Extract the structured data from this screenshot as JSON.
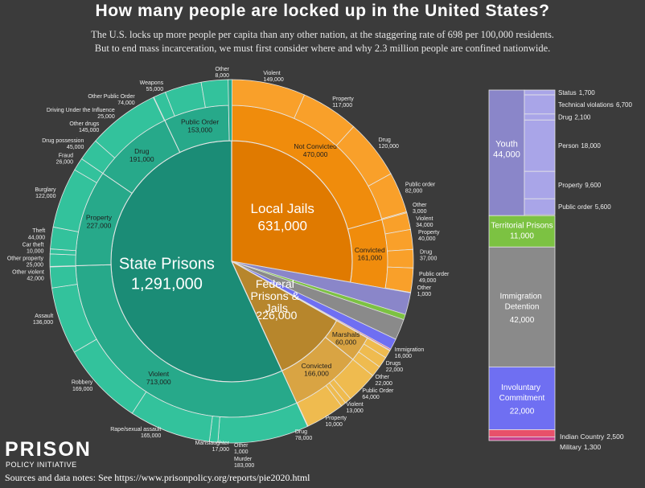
{
  "chart_data": {
    "type": "sunburst",
    "title": "How many people are locked up in the United States?",
    "subtitle": [
      "The U.S. locks up more people per capita than any other nation, at the staggering rate of 698 per 100,000 residents.",
      "But to end mass incarceration, we must first consider where and why 2.3 million people are confined nationwide."
    ],
    "source": "Sources and data notes: See https://www.prisonpolicy.org/reports/pie2020.html",
    "logo": [
      "PRISON",
      "POLICY INITIATIVE"
    ],
    "nodes": [
      {
        "name": "Local Jails",
        "value": 631000,
        "value_label": "631,000",
        "colors": [
          "#e07a00",
          "#f08c0c",
          "#f9a02a"
        ],
        "children": [
          {
            "name": "Not Convicted",
            "value": 470000,
            "value_label": "470,000",
            "children": [
              {
                "name": "Violent",
                "value": 149000,
                "value_label": "149,000"
              },
              {
                "name": "Property",
                "value": 117000,
                "value_label": "117,000"
              },
              {
                "name": "Drug",
                "value": 120000,
                "value_label": "120,000"
              },
              {
                "name": "Public order",
                "value": 82000,
                "value_label": "82,000"
              },
              {
                "name": "Other",
                "value": 3000,
                "value_label": "3,000"
              }
            ]
          },
          {
            "name": "Convicted",
            "value": 161000,
            "value_label": "161,000",
            "children": [
              {
                "name": "Violent",
                "value": 34000,
                "value_label": "34,000"
              },
              {
                "name": "Property",
                "value": 40000,
                "value_label": "40,000"
              },
              {
                "name": "Drug",
                "value": 37000,
                "value_label": "37,000"
              },
              {
                "name": "Public order",
                "value": 49000,
                "value_label": "49,000"
              },
              {
                "name": "Other",
                "value": 1000,
                "value_label": "1,000"
              }
            ]
          }
        ]
      },
      {
        "name": "Youth",
        "value": 44000,
        "value_label": "44,000",
        "colors": [
          "#8a86c9",
          "#a9a5e8"
        ],
        "children": [
          {
            "name": "Status",
            "value": 1700,
            "value_label": "1,700"
          },
          {
            "name": "Technical violations",
            "value": 6700,
            "value_label": "6,700"
          },
          {
            "name": "Drug",
            "value": 2100,
            "value_label": "2,100"
          },
          {
            "name": "Person",
            "value": 18000,
            "value_label": "18,000"
          },
          {
            "name": "Property",
            "value": 9600,
            "value_label": "9,600"
          },
          {
            "name": "Public order",
            "value": 5600,
            "value_label": "5,600"
          }
        ]
      },
      {
        "name": "Territorial Prisons",
        "value": 11000,
        "value_label": "11,000",
        "color": "#7cc242"
      },
      {
        "name": "Immigration Detention",
        "value": 42000,
        "value_label": "42,000",
        "color": "#8a8a8a"
      },
      {
        "name": "Involuntary Commitment",
        "value": 22000,
        "value_label": "22,000",
        "color": "#6f6ff2"
      },
      {
        "name": "Indian Country",
        "value": 2500,
        "value_label": "2,500",
        "color": "#e8506a"
      },
      {
        "name": "Military",
        "value": 1300,
        "value_label": "1,300",
        "color": "#c9408c"
      },
      {
        "name": "Federal Prisons & Jails",
        "value": 226000,
        "value_label": "226,000",
        "colors": [
          "#b7862c",
          "#d9a443",
          "#efbb4f"
        ],
        "children": [
          {
            "name": "Marshals",
            "value": 60000,
            "value_label": "60,000",
            "children": [
              {
                "name": "Immigration",
                "value": 16000,
                "value_label": "16,000"
              },
              {
                "name": "Drugs",
                "value": 22000,
                "value_label": "22,000"
              },
              {
                "name": "Other",
                "value": 22000,
                "value_label": "22,000"
              }
            ]
          },
          {
            "name": "Convicted",
            "value": 166000,
            "value_label": "166,000",
            "children": [
              {
                "name": "Public Order",
                "value": 64000,
                "value_label": "64,000"
              },
              {
                "name": "Violent",
                "value": 13000,
                "value_label": "13,000"
              },
              {
                "name": "Property",
                "value": 10000,
                "value_label": "10,000"
              },
              {
                "name": "Drug",
                "value": 78000,
                "value_label": "78,000"
              },
              {
                "name": "Other",
                "value": 1000,
                "value_label": "1,000"
              }
            ]
          }
        ]
      },
      {
        "name": "State Prisons",
        "value": 1291000,
        "value_label": "1,291,000",
        "colors": [
          "#1b8c76",
          "#27a98a",
          "#33c29c"
        ],
        "children": [
          {
            "name": "Violent",
            "value": 713000,
            "value_label": "713,000",
            "children": [
              {
                "name": "Murder",
                "value": 183000,
                "value_label": "183,000"
              },
              {
                "name": "Manslaughter",
                "value": 17000,
                "value_label": "17,000"
              },
              {
                "name": "Rape/sexual assault",
                "value": 165000,
                "value_label": "165,000"
              },
              {
                "name": "Robbery",
                "value": 169000,
                "value_label": "169,000"
              },
              {
                "name": "Assault",
                "value": 136000,
                "value_label": "136,000"
              },
              {
                "name": "Other violent",
                "value": 42000,
                "value_label": "42,000"
              }
            ]
          },
          {
            "name": "Property",
            "value": 227000,
            "value_label": "227,000",
            "children": [
              {
                "name": "Other property",
                "value": 25000,
                "value_label": "25,000"
              },
              {
                "name": "Car theft",
                "value": 10000,
                "value_label": "10,000"
              },
              {
                "name": "Theft",
                "value": 44000,
                "value_label": "44,000"
              },
              {
                "name": "Burglary",
                "value": 122000,
                "value_label": "122,000"
              },
              {
                "name": "Fraud",
                "value": 26000,
                "value_label": "26,000"
              }
            ]
          },
          {
            "name": "Drug",
            "value": 191000,
            "value_label": "191,000",
            "children": [
              {
                "name": "Drug possession",
                "value": 45000,
                "value_label": "45,000"
              },
              {
                "name": "Other drugs",
                "value": 145000,
                "value_label": "145,000"
              }
            ]
          },
          {
            "name": "Public Order",
            "value": 153000,
            "value_label": "153,000",
            "children": [
              {
                "name": "Driving Under the Influence",
                "value": 25000,
                "value_label": "25,000"
              },
              {
                "name": "Other Public Order",
                "value": 74000,
                "value_label": "74,000"
              },
              {
                "name": "Weapons",
                "value": 55000,
                "value_label": "55,000"
              }
            ]
          },
          {
            "name": "Other",
            "value": 8000,
            "value_label": "8,000"
          }
        ]
      }
    ]
  }
}
